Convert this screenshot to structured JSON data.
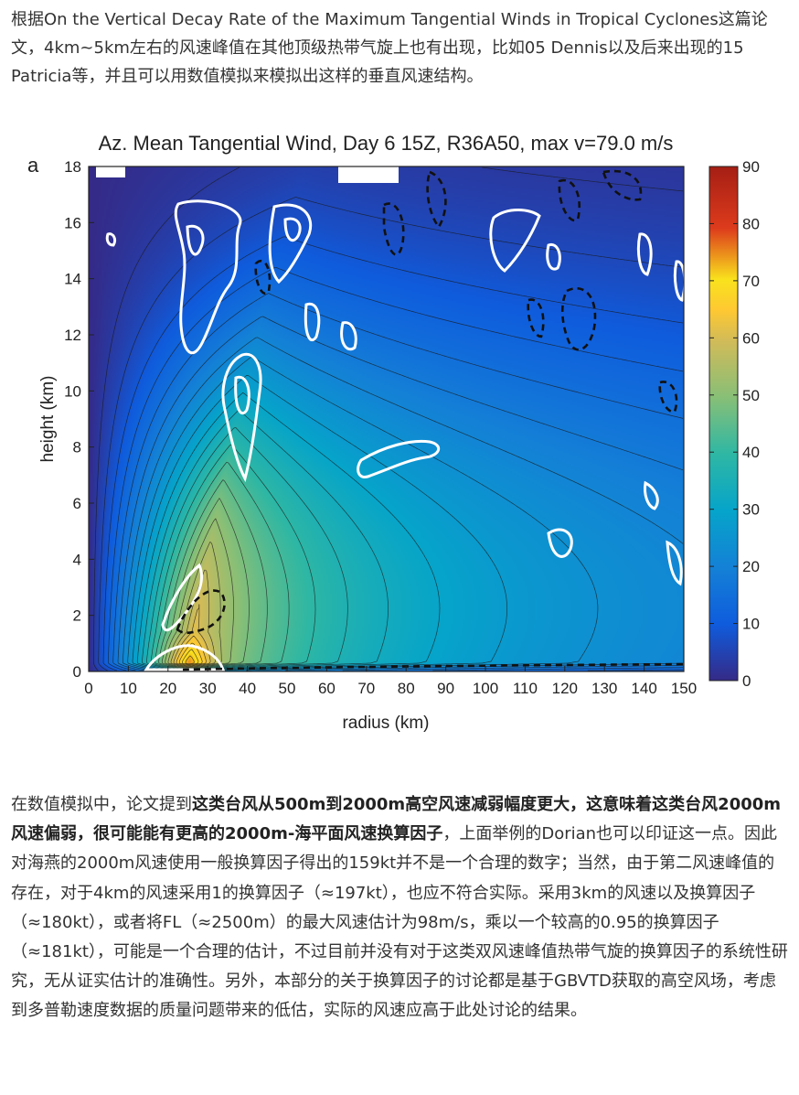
{
  "article": {
    "para1": "根据On the Vertical Decay Rate of the Maximum Tangential Winds in Tropical Cyclones这篇论文，4km~5km左右的风速峰值在其他顶级热带气旋上也有出现，比如05 Dennis以及后来出现的15 Patricia等，并且可以用数值模拟来模拟出这样的垂直风速结构。",
    "para2_a": "在数值模拟中，论文提到",
    "para2_b": "这类台风从500m到2000m高空风速减弱幅度更大，这意味着这类台风2000m风速偏弱，很可能能有更高的2000m-海平面风速换算因子",
    "para2_c": "，上面举例的Dorian也可以印证这一点。因此对海燕的2000m风速使用一般换算因子得出的159kt并不是一个合理的数字；当然，由于第二风速峰值的存在，对于4km的风速采用1的换算因子（≈197kt），也应不符合实际。采用3km的风速以及换算因子（≈180kt），或者将FL（≈2500m）的最大风速估计为98m/s，乘以一个较高的0.95的换算因子（≈181kt），可能是一个合理的估计，不过目前并没有对于这类双风速峰值热带气旋的换算因子的系统性研究，无从证实估计的准确性。另外，本部分的关于换算因子的讨论都是基于GBVTD获取的高空风场，考虑到多普勒速度数据的质量问题带来的低估，实际的风速应高于此处讨论的结果。"
  },
  "chart_data": {
    "type": "heatmap",
    "panel_label": "a",
    "title": "Az. Mean Tangential Wind, Day 6 15Z, R36A50, max v=79.0 m/s",
    "xlabel": "radius (km)",
    "ylabel": "height (km)",
    "xlim": [
      0,
      150
    ],
    "ylim": [
      0,
      18
    ],
    "x_ticks": [
      "0",
      "10",
      "20",
      "30",
      "40",
      "50",
      "60",
      "70",
      "80",
      "90",
      "100",
      "110",
      "120",
      "130",
      "140",
      "150"
    ],
    "y_ticks": [
      "0",
      "2",
      "4",
      "6",
      "8",
      "10",
      "12",
      "14",
      "16",
      "18"
    ],
    "colorbar": {
      "range": [
        0,
        90
      ],
      "ticks": [
        "0",
        "10",
        "20",
        "30",
        "40",
        "50",
        "60",
        "70",
        "80",
        "90"
      ],
      "colors": [
        "#352a87",
        "#0f5cdd",
        "#1481d6",
        "#06a4ca",
        "#2eb7a4",
        "#87bf77",
        "#d1bb59",
        "#fec832",
        "#f9e21d",
        "#dd3b1c",
        "#a51e14"
      ]
    },
    "max_wind": {
      "r": 25,
      "z": 0.5,
      "value": 79.0
    },
    "gridlines": false
  }
}
